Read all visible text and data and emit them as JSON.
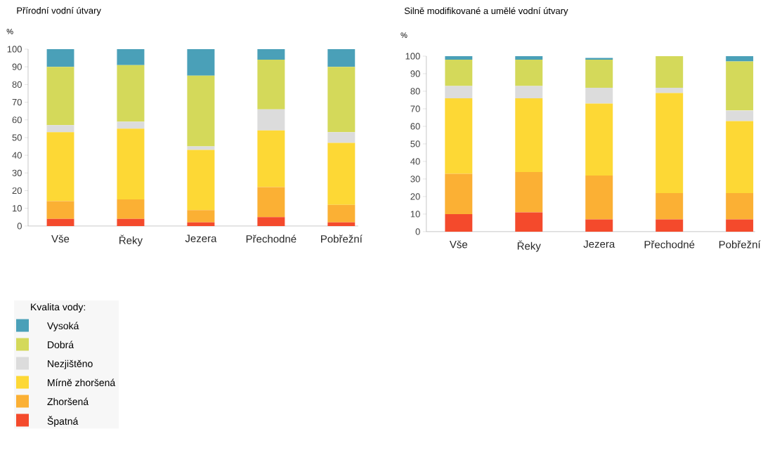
{
  "chart_data": [
    {
      "type": "bar",
      "stacked": true,
      "title": "Přírodní vodní útvary",
      "ylabel": "%",
      "legend_title": "Kvalita vody:",
      "legend": "bottom left",
      "categories": [
        "Vše",
        "Řeky",
        "Jezera",
        "Přechodné",
        "Pobřežní"
      ],
      "ylim": [
        0,
        100
      ],
      "yticks": [
        0,
        10,
        20,
        30,
        40,
        50,
        60,
        70,
        80,
        90,
        100
      ],
      "series": [
        {
          "name": "Špatná",
          "color": "#f44a2c",
          "values": [
            4,
            4,
            2,
            5,
            2
          ]
        },
        {
          "name": "Zhoršená",
          "color": "#fbb034",
          "values": [
            10,
            11,
            7,
            17,
            10
          ]
        },
        {
          "name": "Mírně zhoršená",
          "color": "#fdd835",
          "values": [
            39,
            40,
            34,
            32,
            35
          ]
        },
        {
          "name": "Nezjištěno",
          "color": "#dcdcdc",
          "values": [
            4,
            4,
            2,
            12,
            6
          ]
        },
        {
          "name": "Dobrá",
          "color": "#d4d95a",
          "values": [
            33,
            32,
            40,
            28,
            37
          ]
        },
        {
          "name": "Vysoká",
          "color": "#4aa0b8",
          "values": [
            10,
            9,
            15,
            6,
            10
          ]
        }
      ]
    },
    {
      "type": "bar",
      "stacked": true,
      "title": "Silně modifikované a umělé vodní útvary",
      "ylabel": "%",
      "categories": [
        "Vše",
        "Řeky",
        "Jezera",
        "Přechodné",
        "Pobřežní"
      ],
      "ylim": [
        0,
        100
      ],
      "yticks": [
        0,
        10,
        20,
        30,
        40,
        50,
        60,
        70,
        80,
        90,
        100
      ],
      "series": [
        {
          "color": "#f44a2c",
          "values": [
            10,
            11,
            7,
            7,
            7
          ]
        },
        {
          "color": "#fbb034",
          "values": [
            23,
            23,
            25,
            15,
            15
          ]
        },
        {
          "color": "#fdd835",
          "values": [
            43,
            42,
            41,
            57,
            41
          ]
        },
        {
          "color": "#dcdcdc",
          "values": [
            7,
            7,
            9,
            3,
            6
          ]
        },
        {
          "color": "#d4d95a",
          "values": [
            15,
            15,
            16,
            18,
            28
          ]
        },
        {
          "color": "#4aa0b8",
          "values": [
            2,
            2,
            1,
            0,
            3
          ]
        }
      ]
    }
  ]
}
